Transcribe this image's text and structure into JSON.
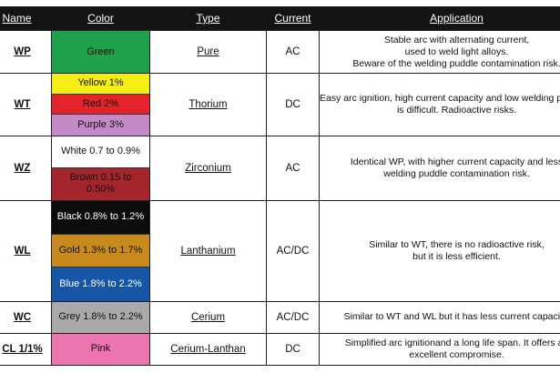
{
  "headers": {
    "name": "Name",
    "color": "Color",
    "type": "Type",
    "current": "Current",
    "application": "Application"
  },
  "rows": [
    {
      "name": "WP",
      "type": "Pure",
      "current": "AC",
      "colors": [
        {
          "label": "Green",
          "bg": "#1fa04a",
          "fg": "#111111"
        }
      ],
      "application": [
        "Stable arc with alternating current,",
        "used to weld light alloys.",
        "Beware of the welding puddle contamination risk."
      ]
    },
    {
      "name": "WT",
      "type": "Thorium",
      "current": "DC",
      "colors": [
        {
          "label": "Yellow 1%",
          "bg": "#f5ee12",
          "fg": "#111111"
        },
        {
          "label": "Red 2%",
          "bg": "#e3242b",
          "fg": "#111111"
        },
        {
          "label": "Purple 3%",
          "bg": "#c48ac7",
          "fg": "#111111"
        }
      ],
      "application": [
        "Easy arc ignition, high current capacity and low welding puddle contamination risk. The use of AC current",
        "is difficult. Radioactive risks."
      ]
    },
    {
      "name": "WZ",
      "type": "Zirconium",
      "current": "AC",
      "colors": [
        {
          "label": "White 0.7 to 0.9%",
          "bg": "#ffffff",
          "fg": "#111111"
        },
        {
          "label": "Brown 0.15 to 0.50%",
          "bg": "#a4262c",
          "fg": "#111111"
        }
      ],
      "application": [
        "Identical WP, with higher current capacity and less",
        "welding puddle contamination risk."
      ]
    },
    {
      "name": "WL",
      "type": "Lanthanium",
      "current": "AC/DC",
      "colors": [
        {
          "label": "Black 0.8% to 1.2%",
          "bg": "#0c0c0c",
          "fg": "#ffffff"
        },
        {
          "label": "Gold 1.3% to 1.7%",
          "bg": "#c98a1d",
          "fg": "#111111"
        },
        {
          "label": "Blue 1.8% to 2.2%",
          "bg": "#1557a6",
          "fg": "#ffffff"
        }
      ],
      "application": [
        "Similar to WT, there is no radioactive risk,",
        "but it is less efficient."
      ]
    },
    {
      "name": "WC",
      "type": "Cerium",
      "current": "AC/DC",
      "colors": [
        {
          "label": "Grey 1.8% to 2.2%",
          "bg": "#a9a9a9",
          "fg": "#111111"
        }
      ],
      "application": [
        "Similar to WT and WL but it has less current capacity."
      ]
    },
    {
      "name": "CL 1/1%",
      "type": "Cerium-Lanthan",
      "current": "DC",
      "colors": [
        {
          "label": "Pink",
          "bg": "#ec74b0",
          "fg": "#111111"
        }
      ],
      "application": [
        "Simplified arc ignitionand a long life span. It offers an",
        "excellent compromise."
      ]
    }
  ]
}
